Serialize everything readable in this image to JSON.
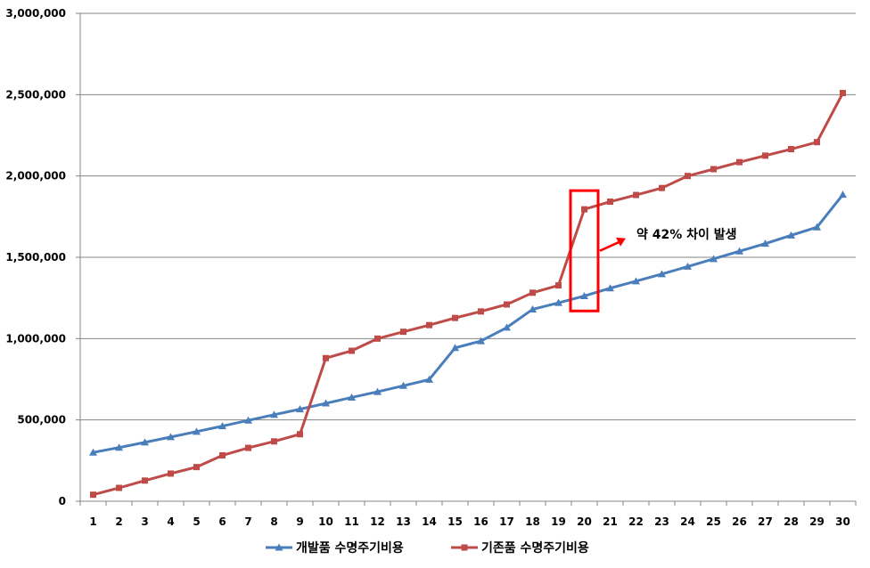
{
  "chart_data": {
    "type": "line",
    "x": [
      1,
      2,
      3,
      4,
      5,
      6,
      7,
      8,
      9,
      10,
      11,
      12,
      13,
      14,
      15,
      16,
      17,
      18,
      19,
      20,
      21,
      22,
      23,
      24,
      25,
      26,
      27,
      28,
      29,
      30
    ],
    "ylim": [
      0,
      3000000
    ],
    "yticks": [
      "0",
      "500,000",
      "1,000,000",
      "1,500,000",
      "2,000,000",
      "2,500,000",
      "3,000,000"
    ],
    "ytick_values": [
      0,
      500000,
      1000000,
      1500000,
      2000000,
      2500000,
      3000000
    ],
    "grid": true,
    "legend_position": "bottom",
    "series": [
      {
        "name": "개발품 수명주기비용",
        "color": "#4a7ebb",
        "marker": "triangle",
        "values": [
          300000,
          330000,
          362000,
          395000,
          428000,
          462000,
          497000,
          532000,
          566000,
          602000,
          638000,
          673000,
          710000,
          748000,
          943000,
          985000,
          1068000,
          1180000,
          1220000,
          1262000,
          1310000,
          1353000,
          1397000,
          1443000,
          1490000,
          1537000,
          1584000,
          1635000,
          1685000,
          1885000
        ]
      },
      {
        "name": "기존품 수명주기비용",
        "color": "#be4b48",
        "marker": "square",
        "values": [
          40000,
          82000,
          127000,
          170000,
          210000,
          282000,
          328000,
          368000,
          412000,
          880000,
          925000,
          1000000,
          1042000,
          1083000,
          1127000,
          1167000,
          1210000,
          1282000,
          1327000,
          1795000,
          1842000,
          1883000,
          1926000,
          2000000,
          2042000,
          2085000,
          2125000,
          2165000,
          2208000,
          2510000
        ]
      }
    ],
    "annotation": {
      "text": "약 42% 차이 발생",
      "highlight_x": 20,
      "highlight_range": [
        1170000,
        1910000
      ],
      "color": "#ff0000"
    }
  }
}
